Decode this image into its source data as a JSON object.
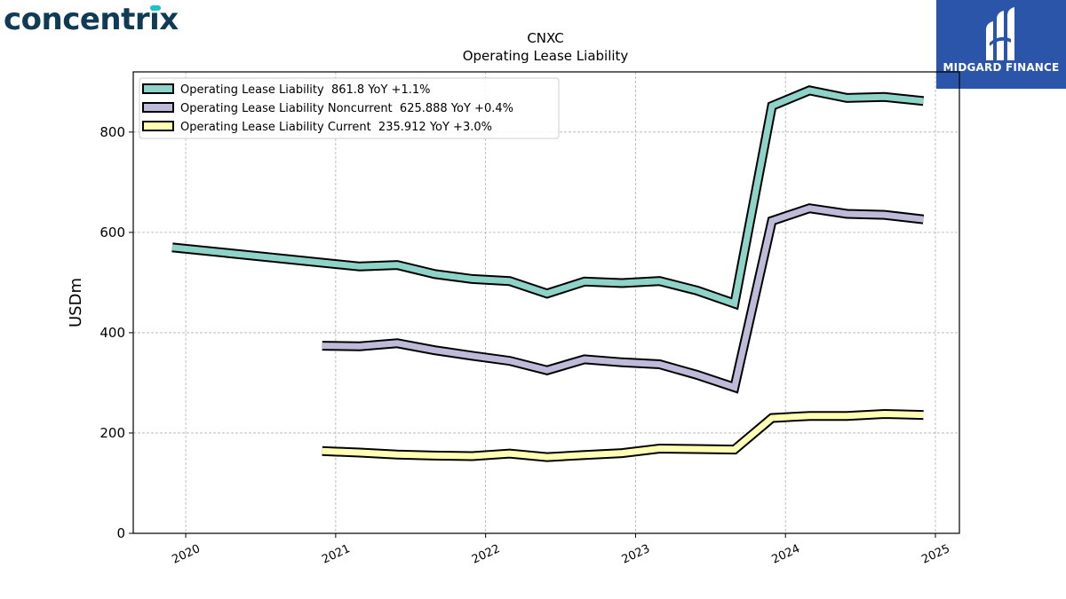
{
  "logos": {
    "left_brand": "concentrix",
    "right_brand": "MIDGARD FINANCE"
  },
  "chart_data": {
    "type": "line",
    "title": "CNXC",
    "subtitle": "Operating Lease Liability",
    "ylabel": "USDm",
    "xlabel": "",
    "ylim": [
      0,
      920
    ],
    "xlim": [
      2019.65,
      2025.16
    ],
    "x_ticks": [
      "2020",
      "2021",
      "2022",
      "2023",
      "2024",
      "2025"
    ],
    "y_ticks": [
      "0",
      "200",
      "400",
      "600",
      "800"
    ],
    "grid": true,
    "legend_position": "top-left",
    "series": [
      {
        "name": "Operating Lease Liability  861.8 YoY +1.1%",
        "color": "#8dd3c7",
        "x": [
          2019.91,
          2021.16,
          2021.41,
          2021.66,
          2021.91,
          2022.16,
          2022.41,
          2022.66,
          2022.91,
          2023.16,
          2023.41,
          2023.66,
          2023.91,
          2024.16,
          2024.41,
          2024.66,
          2024.92
        ],
        "values": [
          570,
          532,
          535,
          517,
          507,
          503,
          478,
          502,
          499,
          503,
          484,
          458,
          852,
          883,
          868,
          870,
          862
        ]
      },
      {
        "name": "Operating Lease Liability Noncurrent  625.888 YoY +0.4%",
        "color": "#bebada",
        "x": [
          2020.91,
          2021.16,
          2021.41,
          2021.66,
          2021.91,
          2022.16,
          2022.41,
          2022.66,
          2022.91,
          2023.16,
          2023.41,
          2023.66,
          2023.91,
          2024.16,
          2024.41,
          2024.66,
          2024.92
        ],
        "values": [
          374,
          373,
          379,
          365,
          354,
          344,
          325,
          347,
          341,
          337,
          316,
          291,
          623,
          648,
          637,
          635,
          626
        ]
      },
      {
        "name": "Operating Lease Liability Current  235.912 YoY +3.0%",
        "color": "#ffffb3",
        "x": [
          2020.91,
          2021.16,
          2021.41,
          2021.66,
          2021.91,
          2022.16,
          2022.41,
          2022.66,
          2022.91,
          2023.16,
          2023.41,
          2023.66,
          2023.91,
          2024.16,
          2024.41,
          2024.66,
          2024.92
        ],
        "values": [
          164,
          161,
          157,
          155,
          154,
          159,
          152,
          156,
          160,
          169,
          168,
          167,
          230,
          234,
          234,
          238,
          236
        ]
      }
    ]
  }
}
